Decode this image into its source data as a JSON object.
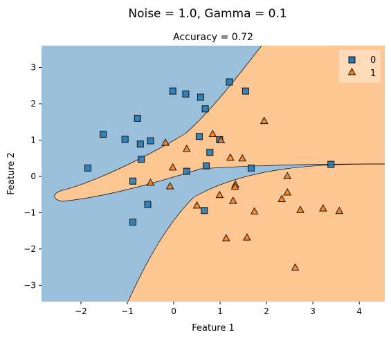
{
  "chart_data": {
    "type": "scatter",
    "suptitle": "Noise = 1.0, Gamma = 0.1",
    "title": "Accuracy = 0.72",
    "xlabel": "Feature 1",
    "ylabel": "Feature 2",
    "xlim": [
      -2.85,
      4.55
    ],
    "ylim": [
      -3.45,
      3.6
    ],
    "xticks": [
      -2,
      -1,
      0,
      1,
      2,
      3,
      4
    ],
    "yticks": [
      -3,
      -2,
      -1,
      0,
      1,
      2,
      3
    ],
    "legend": {
      "placement": "top-right"
    },
    "decision_regions": {
      "class_0_color": "#9bc0dc",
      "class_1_color": "#fdc794",
      "boundary_color": "#000000"
    },
    "series": [
      {
        "name": "0",
        "marker": "square",
        "color": "#1f77b4",
        "points": [
          [
            -1.85,
            0.23
          ],
          [
            -1.52,
            1.16
          ],
          [
            -1.05,
            1.02
          ],
          [
            -0.78,
            1.6
          ],
          [
            -0.72,
            0.89
          ],
          [
            -0.5,
            0.98
          ],
          [
            -0.7,
            0.47
          ],
          [
            -0.88,
            -0.13
          ],
          [
            -0.56,
            -0.77
          ],
          [
            -0.88,
            -1.26
          ],
          [
            -0.02,
            2.35
          ],
          [
            0.26,
            2.27
          ],
          [
            0.58,
            2.18
          ],
          [
            0.68,
            1.86
          ],
          [
            1.2,
            2.6
          ],
          [
            1.55,
            2.35
          ],
          [
            0.55,
            1.1
          ],
          [
            0.99,
            1.01
          ],
          [
            0.78,
            0.66
          ],
          [
            0.28,
            0.14
          ],
          [
            0.7,
            0.29
          ],
          [
            1.67,
            0.23
          ],
          [
            3.39,
            0.33
          ],
          [
            0.66,
            -0.94
          ]
        ]
      },
      {
        "name": "1",
        "marker": "triangle",
        "color": "#ff7f0e",
        "points": [
          [
            -0.18,
            0.93
          ],
          [
            0.28,
            0.76
          ],
          [
            0.84,
            1.17
          ],
          [
            1.02,
            1.0
          ],
          [
            -0.02,
            0.25
          ],
          [
            -0.5,
            -0.17
          ],
          [
            -0.08,
            -0.27
          ],
          [
            1.22,
            0.52
          ],
          [
            1.48,
            0.5
          ],
          [
            1.95,
            1.53
          ],
          [
            0.5,
            -0.8
          ],
          [
            0.99,
            -0.51
          ],
          [
            1.33,
            -0.22
          ],
          [
            1.32,
            -0.28
          ],
          [
            1.28,
            -0.67
          ],
          [
            1.74,
            -0.96
          ],
          [
            2.33,
            -0.62
          ],
          [
            2.45,
            0.01
          ],
          [
            2.45,
            -0.44
          ],
          [
            2.73,
            -0.92
          ],
          [
            3.22,
            -0.88
          ],
          [
            3.57,
            -0.95
          ],
          [
            1.13,
            -1.7
          ],
          [
            1.58,
            -1.68
          ],
          [
            2.62,
            -2.51
          ]
        ]
      }
    ]
  }
}
